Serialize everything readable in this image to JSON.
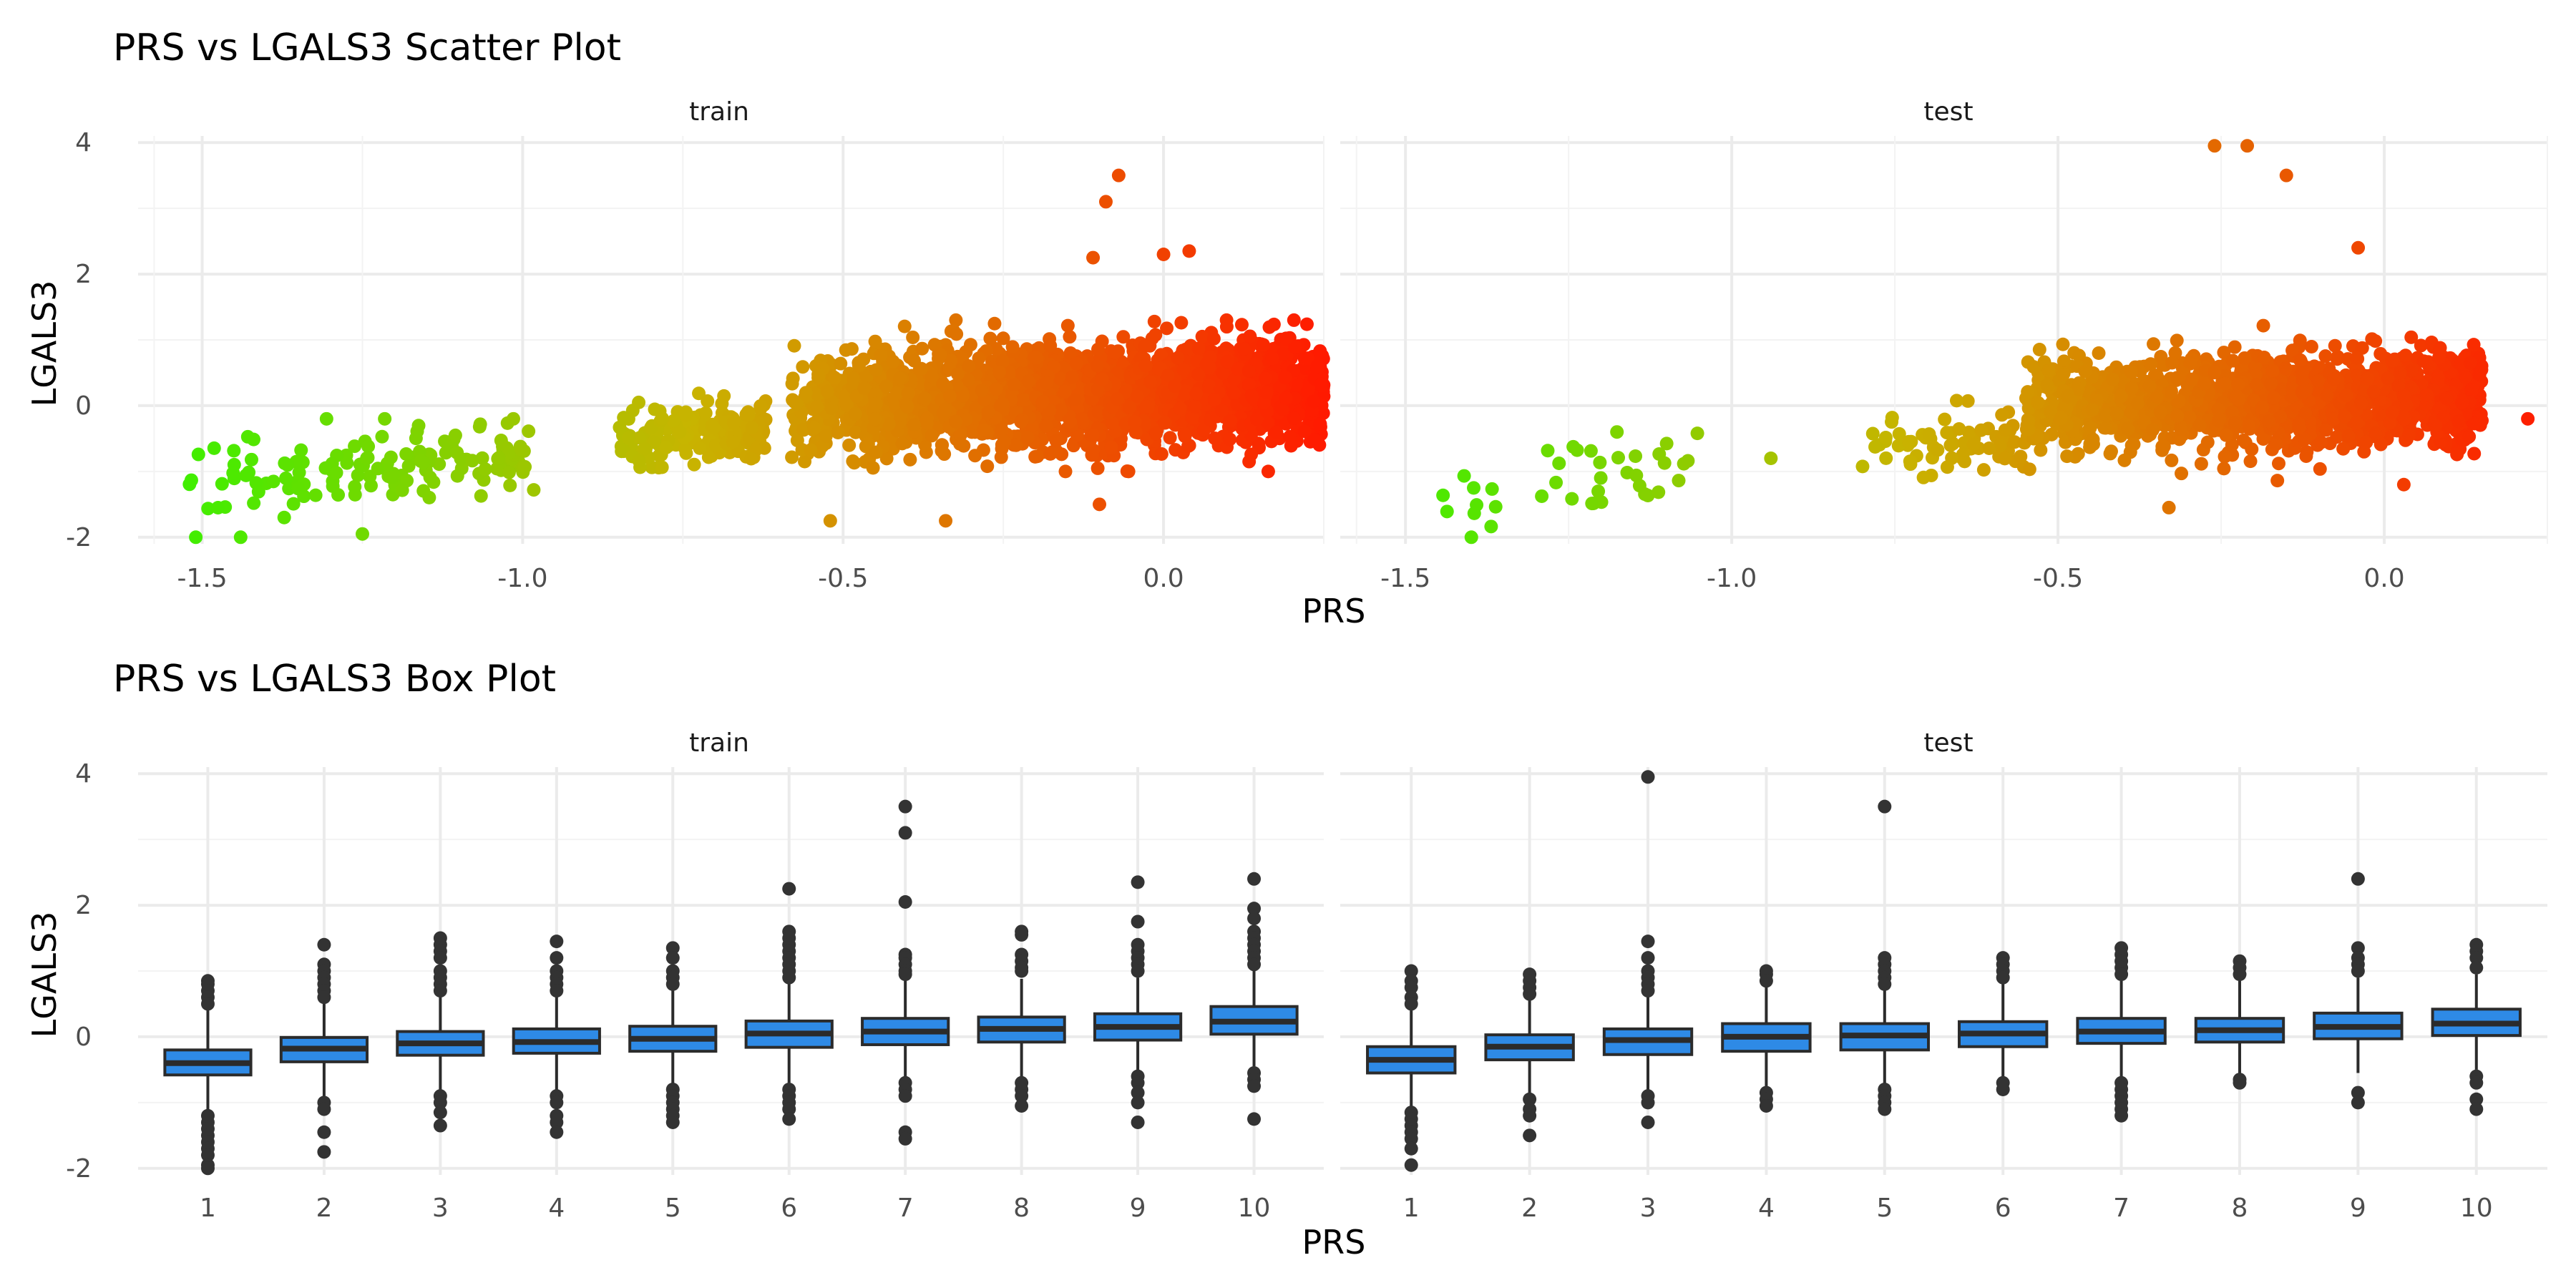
{
  "figure": {
    "scatter_title": "PRS vs LGALS3 Scatter Plot",
    "box_title": "PRS vs LGALS3 Box Plot",
    "x_axis_label": "PRS",
    "y_axis_label": "LGALS3"
  },
  "colors": {
    "low_prs": "#3cf000",
    "mid_prs": "#c8b400",
    "high_prs": "#ff1a00",
    "box_fill": "#2e8ae6",
    "box_line": "#2b2b2b",
    "outlier": "#333333"
  },
  "chart_data": [
    {
      "type": "scatter",
      "title": "PRS vs LGALS3 Scatter Plot",
      "xlabel": "PRS",
      "ylabel": "LGALS3",
      "xlim": [
        -1.6,
        0.25
      ],
      "ylim": [
        -2.1,
        4.1
      ],
      "xticks": [
        -1.5,
        -1.0,
        -0.5,
        0.0
      ],
      "xtick_labels": [
        "-1.5",
        "-1.0",
        "-0.5",
        "0.0"
      ],
      "yticks": [
        -2,
        0,
        2,
        4
      ],
      "ytick_labels": [
        "-2",
        "0",
        "2",
        "4"
      ],
      "color_by": "PRS (green at low PRS, yellow-orange mid, red at high PRS)",
      "grid": true,
      "panels": [
        {
          "name": "train",
          "clusters": [
            {
              "x_range": [
                -1.52,
                -0.98
              ],
              "y_range": [
                -1.7,
                -0.2
              ],
              "slope": 2.3,
              "spread": 0.28,
              "n": 140
            },
            {
              "x_range": [
                -0.85,
                -0.62
              ],
              "y_range": [
                -1.0,
                0.2
              ],
              "slope": 0.5,
              "spread": 0.22,
              "n": 200
            },
            {
              "x_range": [
                -0.58,
                0.25
              ],
              "y_range": [
                -1.0,
                1.3
              ],
              "slope": 0.5,
              "spread": 0.38,
              "n": 2200
            }
          ],
          "outliers": [
            {
              "x": -1.51,
              "y": -2.0
            },
            {
              "x": -1.44,
              "y": -2.0
            },
            {
              "x": -1.25,
              "y": -1.95
            },
            {
              "x": -0.07,
              "y": 3.5
            },
            {
              "x": -0.09,
              "y": 3.1
            },
            {
              "x": -0.11,
              "y": 2.25
            },
            {
              "x": 0.0,
              "y": 2.3
            },
            {
              "x": 0.04,
              "y": 2.35
            },
            {
              "x": 0.24,
              "y": 0.6
            },
            {
              "x": -0.52,
              "y": -1.75
            },
            {
              "x": -0.34,
              "y": -1.75
            },
            {
              "x": -0.1,
              "y": -1.5
            }
          ]
        },
        {
          "name": "test",
          "clusters": [
            {
              "x_range": [
                -1.46,
                -1.35
              ],
              "y_range": [
                -2.0,
                -1.0
              ],
              "slope": 2.0,
              "spread": 0.3,
              "n": 10
            },
            {
              "x_range": [
                -1.3,
                -1.05
              ],
              "y_range": [
                -1.75,
                -0.4
              ],
              "slope": 2.2,
              "spread": 0.3,
              "n": 30
            },
            {
              "x_range": [
                -0.8,
                -0.55
              ],
              "y_range": [
                -1.3,
                0.1
              ],
              "slope": 0.6,
              "spread": 0.25,
              "n": 70
            },
            {
              "x_range": [
                -0.55,
                0.15
              ],
              "y_range": [
                -1.3,
                1.4
              ],
              "slope": 0.5,
              "spread": 0.35,
              "n": 1500
            }
          ],
          "outliers": [
            {
              "x": -0.26,
              "y": 3.95
            },
            {
              "x": -0.21,
              "y": 3.95
            },
            {
              "x": -0.15,
              "y": 3.5
            },
            {
              "x": -0.04,
              "y": 2.4
            },
            {
              "x": 0.22,
              "y": -0.2
            },
            {
              "x": -0.94,
              "y": -0.8
            },
            {
              "x": -0.33,
              "y": -1.55
            },
            {
              "x": 0.03,
              "y": -1.2
            }
          ]
        }
      ]
    },
    {
      "type": "box",
      "title": "PRS vs LGALS3 Box Plot",
      "xlabel": "PRS",
      "ylabel": "LGALS3",
      "categories": [
        "1",
        "2",
        "3",
        "4",
        "5",
        "6",
        "7",
        "8",
        "9",
        "10"
      ],
      "ylim": [
        -2.1,
        4.1
      ],
      "yticks": [
        -2,
        0,
        2,
        4
      ],
      "ytick_labels": [
        "-2",
        "0",
        "2",
        "4"
      ],
      "grid": true,
      "panels": [
        {
          "name": "train",
          "boxes": [
            {
              "q1": -0.58,
              "median": -0.4,
              "q3": -0.2,
              "lower": -1.1,
              "upper": 0.45,
              "outliers": [
                0.85,
                0.8,
                0.7,
                0.6,
                0.5,
                -1.2,
                -1.3,
                -1.4,
                -1.5,
                -1.6,
                -1.7,
                -1.8,
                -1.95,
                -2.0
              ]
            },
            {
              "q1": -0.38,
              "median": -0.18,
              "q3": -0.01,
              "lower": -0.9,
              "upper": 0.55,
              "outliers": [
                1.4,
                1.1,
                1.0,
                0.9,
                0.8,
                0.7,
                0.6,
                -1.0,
                -1.1,
                -1.45,
                -1.75
              ]
            },
            {
              "q1": -0.28,
              "median": -0.1,
              "q3": 0.08,
              "lower": -0.85,
              "upper": 0.62,
              "outliers": [
                1.5,
                1.4,
                1.3,
                1.2,
                1.0,
                0.9,
                0.8,
                0.7,
                -0.9,
                -1.0,
                -1.15,
                -1.35
              ]
            },
            {
              "q1": -0.25,
              "median": -0.08,
              "q3": 0.12,
              "lower": -0.8,
              "upper": 0.65,
              "outliers": [
                1.45,
                1.2,
                1.0,
                0.9,
                0.8,
                0.7,
                -0.9,
                -1.0,
                -1.2,
                -1.3,
                -1.45
              ]
            },
            {
              "q1": -0.22,
              "median": -0.03,
              "q3": 0.16,
              "lower": -0.75,
              "upper": 0.72,
              "outliers": [
                1.35,
                1.2,
                1.0,
                0.9,
                0.8,
                -0.8,
                -0.9,
                -1.0,
                -1.1,
                -1.2,
                -1.3
              ]
            },
            {
              "q1": -0.16,
              "median": 0.05,
              "q3": 0.24,
              "lower": -0.7,
              "upper": 0.82,
              "outliers": [
                2.25,
                1.6,
                1.5,
                1.4,
                1.3,
                1.2,
                1.1,
                1.0,
                0.9,
                -0.8,
                -0.9,
                -1.0,
                -1.1,
                -1.25
              ]
            },
            {
              "q1": -0.12,
              "median": 0.08,
              "q3": 0.28,
              "lower": -0.65,
              "upper": 0.85,
              "outliers": [
                3.5,
                3.1,
                2.05,
                1.25,
                1.2,
                1.1,
                1.0,
                0.95,
                -0.7,
                -0.8,
                -0.9,
                -1.45,
                -1.55
              ]
            },
            {
              "q1": -0.08,
              "median": 0.12,
              "q3": 0.3,
              "lower": -0.6,
              "upper": 0.88,
              "outliers": [
                1.6,
                1.55,
                1.25,
                1.15,
                1.05,
                1.0,
                -0.7,
                -0.8,
                -0.9,
                -1.05
              ]
            },
            {
              "q1": -0.05,
              "median": 0.15,
              "q3": 0.35,
              "lower": -0.55,
              "upper": 0.9,
              "outliers": [
                2.35,
                1.75,
                1.4,
                1.3,
                1.2,
                1.1,
                1.0,
                -0.6,
                -0.7,
                -0.85,
                -1.0,
                -1.3
              ]
            },
            {
              "q1": 0.04,
              "median": 0.23,
              "q3": 0.46,
              "lower": -0.45,
              "upper": 1.05,
              "outliers": [
                2.4,
                1.95,
                1.8,
                1.6,
                1.5,
                1.4,
                1.3,
                1.2,
                1.1,
                -0.55,
                -0.65,
                -0.75,
                -1.25
              ]
            }
          ]
        },
        {
          "name": "test",
          "boxes": [
            {
              "q1": -0.55,
              "median": -0.35,
              "q3": -0.15,
              "lower": -1.1,
              "upper": 0.45,
              "outliers": [
                1.0,
                0.85,
                0.75,
                0.6,
                0.5,
                -1.15,
                -1.25,
                -1.35,
                -1.45,
                -1.55,
                -1.7,
                -1.95
              ]
            },
            {
              "q1": -0.35,
              "median": -0.15,
              "q3": 0.03,
              "lower": -0.9,
              "upper": 0.55,
              "outliers": [
                0.95,
                0.85,
                0.75,
                0.65,
                -0.95,
                -1.1,
                -1.2,
                -1.5
              ]
            },
            {
              "q1": -0.27,
              "median": -0.05,
              "q3": 0.12,
              "lower": -0.85,
              "upper": 0.65,
              "outliers": [
                3.95,
                1.45,
                1.2,
                1.0,
                0.9,
                0.8,
                0.7,
                -0.9,
                -1.0,
                -1.3
              ]
            },
            {
              "q1": -0.22,
              "median": 0.0,
              "q3": 0.2,
              "lower": -0.8,
              "upper": 0.75,
              "outliers": [
                1.0,
                0.95,
                0.85,
                -0.85,
                -0.95,
                -1.05
              ]
            },
            {
              "q1": -0.2,
              "median": 0.02,
              "q3": 0.2,
              "lower": -0.75,
              "upper": 0.75,
              "outliers": [
                3.5,
                1.2,
                1.1,
                1.0,
                0.9,
                0.8,
                -0.8,
                -0.9,
                -1.0,
                -1.1
              ]
            },
            {
              "q1": -0.15,
              "median": 0.05,
              "q3": 0.23,
              "lower": -0.65,
              "upper": 0.8,
              "outliers": [
                1.2,
                1.1,
                1.0,
                0.9,
                -0.7,
                -0.8
              ]
            },
            {
              "q1": -0.1,
              "median": 0.08,
              "q3": 0.28,
              "lower": -0.62,
              "upper": 0.85,
              "outliers": [
                1.35,
                1.25,
                1.15,
                1.05,
                0.95,
                -0.7,
                -0.8,
                -0.9,
                -1.0,
                -1.1,
                -1.2
              ]
            },
            {
              "q1": -0.08,
              "median": 0.1,
              "q3": 0.28,
              "lower": -0.6,
              "upper": 0.85,
              "outliers": [
                1.15,
                1.05,
                0.95,
                -0.65,
                -0.7
              ]
            },
            {
              "q1": -0.03,
              "median": 0.15,
              "q3": 0.36,
              "lower": -0.55,
              "upper": 0.9,
              "outliers": [
                2.4,
                1.35,
                1.2,
                1.1,
                1.0,
                -0.85,
                -1.0
              ]
            },
            {
              "q1": 0.02,
              "median": 0.2,
              "q3": 0.42,
              "lower": -0.5,
              "upper": 0.95,
              "outliers": [
                1.4,
                1.3,
                1.2,
                1.05,
                -0.6,
                -0.7,
                -0.95,
                -1.1
              ]
            }
          ]
        }
      ]
    }
  ]
}
